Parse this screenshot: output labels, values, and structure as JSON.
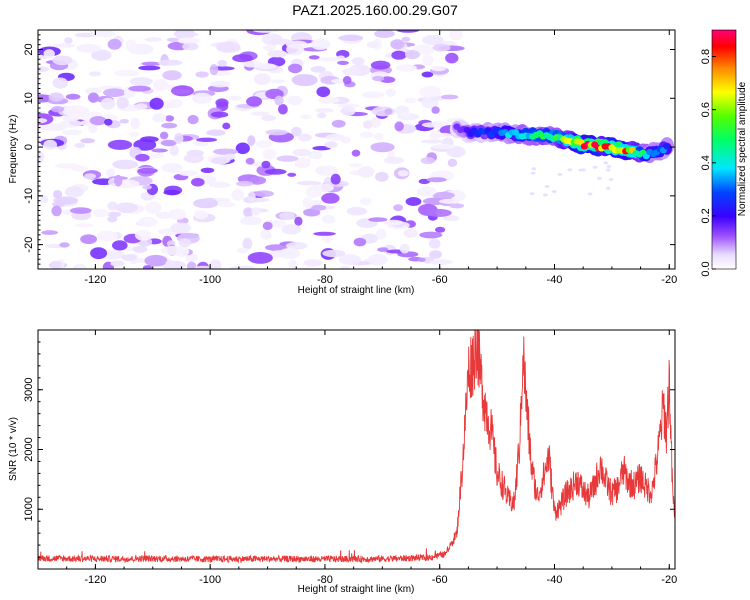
{
  "title": "PAZ1.2025.160.00.29.G07",
  "chart_data": [
    {
      "type": "heatmap",
      "xlabel": "Height of straight line (km)",
      "ylabel": "Frequency (Hz)",
      "xlim": [
        -130,
        -19
      ],
      "ylim": [
        -25,
        24
      ],
      "x_ticks": [
        "-120",
        "-100",
        "-80",
        "-60",
        "-40",
        "-20"
      ],
      "y_ticks": [
        "20",
        "10",
        "0",
        "-10",
        "-20"
      ],
      "colorbar": {
        "label": "Normalized spectral amplitude",
        "range": [
          0.0,
          0.9
        ],
        "ticks": [
          "0.0",
          "0.2",
          "0.4",
          "0.6",
          "0.8"
        ]
      },
      "noise_region_x": [
        -130,
        -57
      ],
      "noise_amplitude_range": [
        0.02,
        0.16
      ],
      "signal_ridge": [
        {
          "x": -57,
          "freq": 4.0,
          "amp": 0.18
        },
        {
          "x": -55,
          "freq": 3.0,
          "amp": 0.22
        },
        {
          "x": -50,
          "freq": 3.0,
          "amp": 0.32
        },
        {
          "x": -45,
          "freq": 2.5,
          "amp": 0.45
        },
        {
          "x": -42,
          "freq": 2.5,
          "amp": 0.5
        },
        {
          "x": -38,
          "freq": 1.5,
          "amp": 0.6
        },
        {
          "x": -35,
          "freq": 0.5,
          "amp": 0.85
        },
        {
          "x": -31,
          "freq": 0.0,
          "amp": 0.78
        },
        {
          "x": -28,
          "freq": -0.5,
          "amp": 0.82
        },
        {
          "x": -24,
          "freq": -1.5,
          "amp": 0.4
        },
        {
          "x": -20,
          "freq": 0.0,
          "amp": 0.3
        }
      ]
    },
    {
      "type": "line",
      "xlabel": "Height of straight line (km)",
      "ylabel": "SNR (10 * v/v)",
      "xlim": [
        -130,
        -19
      ],
      "ylim": [
        0,
        4000
      ],
      "x_ticks": [
        "-120",
        "-100",
        "-80",
        "-60",
        "-40",
        "-20"
      ],
      "y_ticks": [
        "1000",
        "2000",
        "3000"
      ],
      "color": "#e8393a",
      "series": [
        {
          "x": [
            -130,
            -120,
            -110,
            -100,
            -90,
            -80,
            -70,
            -62,
            -59,
            -57,
            -56,
            -55,
            -54,
            -53.5,
            -53,
            -52,
            -51,
            -50,
            -49,
            -48,
            -47,
            -46,
            -45.5,
            -45,
            -44,
            -43,
            -42,
            -41,
            -40,
            -39,
            -38,
            -37,
            -36,
            -35,
            -34,
            -33,
            -32,
            -31,
            -30,
            -29,
            -28,
            -27,
            -26,
            -25,
            -24,
            -23,
            -22,
            -21,
            -20.5,
            -20,
            -19.5,
            -19
          ],
          "values": [
            180,
            170,
            175,
            165,
            170,
            165,
            170,
            190,
            250,
            600,
            1800,
            3300,
            3550,
            3900,
            3300,
            2700,
            2300,
            1600,
            1400,
            1150,
            1100,
            2200,
            3700,
            2900,
            1700,
            1200,
            1500,
            1900,
            950,
            1050,
            1250,
            1350,
            1500,
            1300,
            1200,
            1400,
            1750,
            1450,
            1250,
            1350,
            1650,
            1450,
            1400,
            1550,
            1350,
            1300,
            1900,
            2750,
            2250,
            3200,
            1500,
            700
          ]
        }
      ]
    }
  ]
}
